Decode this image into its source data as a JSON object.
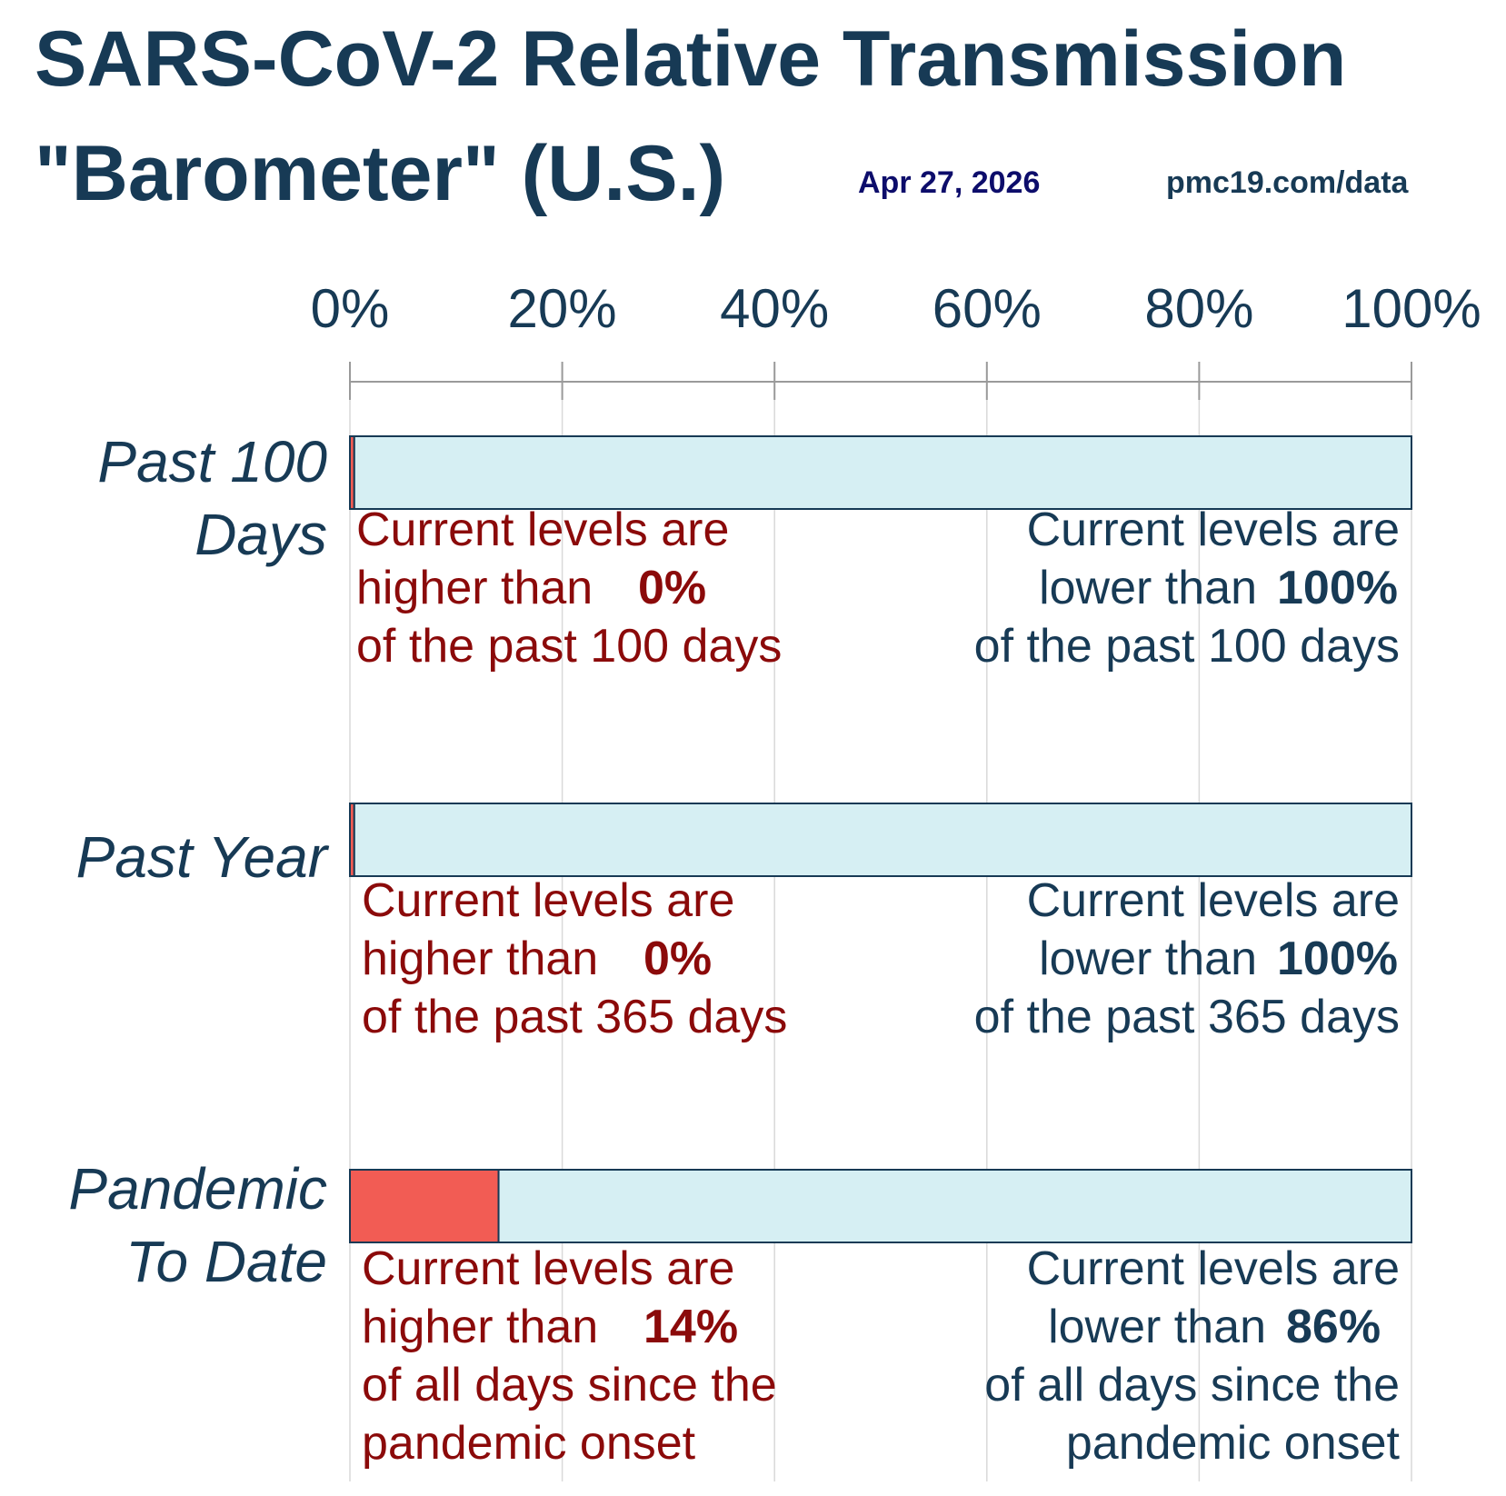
{
  "title_line1": "SARS-CoV-2 Relative Transmission",
  "title_line2": "\"Barometer\" (U.S.)",
  "date": "Apr 27, 2026",
  "source": "pmc19.com/data",
  "colors": {
    "title": "#173a55",
    "date": "#0d0d6b",
    "higher_fill": "#f25c54",
    "lower_fill": "#d6eff3",
    "bar_stroke": "#173a55",
    "higher_text": "#8b0a0a",
    "lower_text": "#173a55",
    "grid": "#d9d9d9",
    "axis": "#9a9a9a"
  },
  "chart_data": {
    "type": "bar",
    "orientation": "horizontal",
    "stacked": true,
    "xlim": [
      0,
      100
    ],
    "x_ticks": [
      "0%",
      "20%",
      "40%",
      "60%",
      "80%",
      "100%"
    ],
    "x_tick_values": [
      0,
      20,
      40,
      60,
      80,
      100
    ],
    "grid": true,
    "categories": [
      "Past 100 Days",
      "Past Year",
      "Pandemic To Date"
    ],
    "category_lines": [
      [
        "Past 100",
        "Days"
      ],
      [
        "Past Year"
      ],
      [
        "Pandemic",
        "To Date"
      ]
    ],
    "series": [
      {
        "values": [
          0.4,
          0.4,
          14
        ]
      },
      {
        "values": [
          99.6,
          99.6,
          86
        ]
      }
    ],
    "annotations": [
      {
        "higher_lines": [
          "Current levels are",
          "higher than",
          "of the past 100 days"
        ],
        "higher_pct": "0%",
        "lower_lines": [
          "Current levels are",
          "lower than",
          "of the past 100 days"
        ],
        "lower_pct": "100%"
      },
      {
        "higher_lines": [
          "Current levels are",
          "higher than",
          "of the past 365 days"
        ],
        "higher_pct": "0%",
        "lower_lines": [
          "Current levels are",
          "lower than",
          "of the past 365 days"
        ],
        "lower_pct": "100%"
      },
      {
        "higher_lines": [
          "Current levels are",
          "higher than",
          "of all days since the",
          "pandemic onset"
        ],
        "higher_pct": "14%",
        "lower_lines": [
          "Current levels are",
          "lower than",
          "of all days since the",
          "pandemic onset"
        ],
        "lower_pct": "86%"
      }
    ]
  }
}
